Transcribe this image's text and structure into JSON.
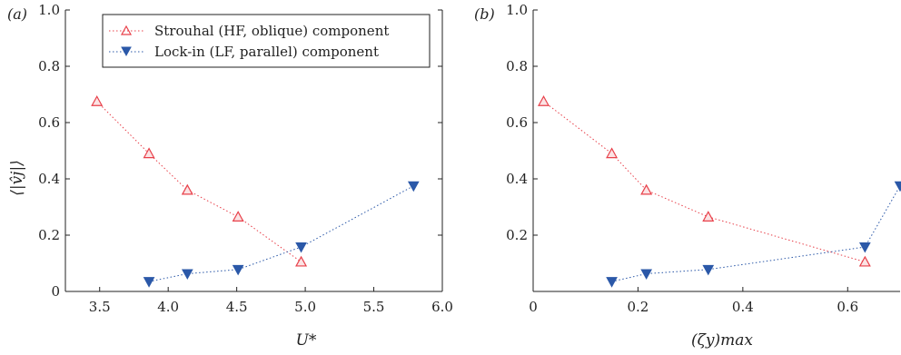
{
  "chart_data": [
    {
      "type": "scatter",
      "panel_label": "(a)",
      "xlabel": "U*",
      "ylabel": "⟨|v̂j|⟩",
      "xlim": [
        3.25,
        6.0
      ],
      "ylim": [
        0,
        1.0
      ],
      "xticks": [
        "3.5",
        "4.0",
        "4.5",
        "5.0",
        "5.5",
        "6.0"
      ],
      "xtick_values": [
        3.5,
        4.0,
        4.5,
        5.0,
        5.5,
        6.0
      ],
      "yticks": [
        "0",
        "0.2",
        "0.4",
        "0.6",
        "0.8",
        "1.0"
      ],
      "ytick_values": [
        0,
        0.2,
        0.4,
        0.6,
        0.8,
        1.0
      ],
      "grid": false,
      "legend_position": "top-right",
      "series": [
        {
          "name": "Strouhal (HF, oblique) component",
          "marker": "triangle-up-open",
          "color": "#e8404a",
          "x": [
            3.48,
            3.86,
            4.14,
            4.51,
            4.97
          ],
          "y": [
            0.675,
            0.49,
            0.36,
            0.265,
            0.105
          ]
        },
        {
          "name": "Lock-in (LF, parallel) component",
          "marker": "triangle-down-filled",
          "color": "#2b58a8",
          "x": [
            3.86,
            4.14,
            4.51,
            4.97,
            5.79
          ],
          "y": [
            0.035,
            0.063,
            0.078,
            0.158,
            0.375
          ]
        }
      ]
    },
    {
      "type": "scatter",
      "panel_label": "(b)",
      "xlabel": "(ζy)max",
      "ylabel": "",
      "xlim": [
        0,
        0.7
      ],
      "ylim": [
        0,
        1.0
      ],
      "xticks": [
        "0",
        "0.2",
        "0.4",
        "0.6"
      ],
      "xtick_values": [
        0,
        0.2,
        0.4,
        0.6
      ],
      "yticks": [
        "0.2",
        "0.4",
        "0.6",
        "0.8",
        "1.0"
      ],
      "ytick_values": [
        0.2,
        0.4,
        0.6,
        0.8,
        1.0
      ],
      "grid": false,
      "series": [
        {
          "marker": "triangle-up-open",
          "color": "#e8404a",
          "x": [
            0.02,
            0.15,
            0.216,
            0.334,
            0.633
          ],
          "y": [
            0.675,
            0.49,
            0.36,
            0.265,
            0.105
          ]
        },
        {
          "marker": "triangle-down-filled",
          "color": "#2b58a8",
          "x": [
            0.15,
            0.216,
            0.334,
            0.633,
            0.7
          ],
          "y": [
            0.035,
            0.063,
            0.078,
            0.158,
            0.375
          ]
        }
      ]
    }
  ]
}
